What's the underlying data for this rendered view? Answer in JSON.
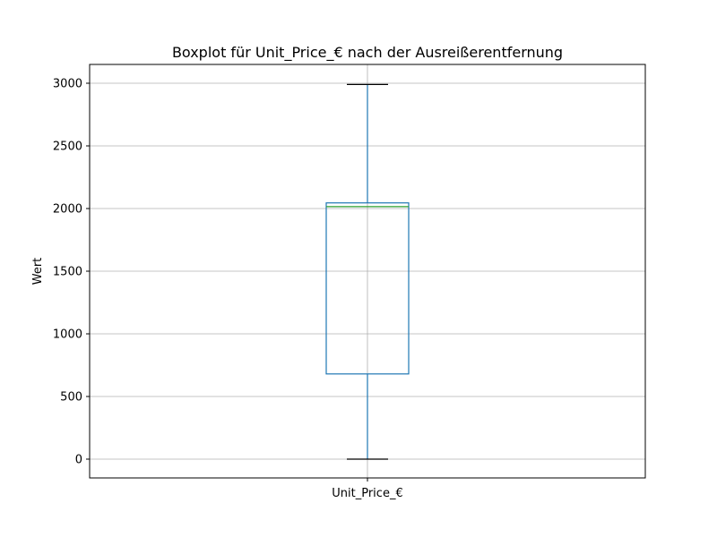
{
  "chart_data": {
    "type": "box",
    "title": "Boxplot für Unit_Price_€ nach der Ausreißerentfernung",
    "xlabel": "",
    "ylabel": "Wert",
    "categories": [
      "Unit_Price_€"
    ],
    "boxes": [
      {
        "category": "Unit_Price_€",
        "min": 0,
        "q1": 680,
        "median": 2015,
        "q3": 2045,
        "max": 2990
      }
    ],
    "y_ticks": [
      0,
      500,
      1000,
      1500,
      2000,
      2500,
      3000
    ],
    "ylim": [
      -150,
      3150
    ],
    "grid": true,
    "colors": {
      "box": "#1f77b4",
      "median": "#2ca02c",
      "whisker_cap": "#000000",
      "grid": "#b0b0b0",
      "axes": "#000000"
    }
  }
}
